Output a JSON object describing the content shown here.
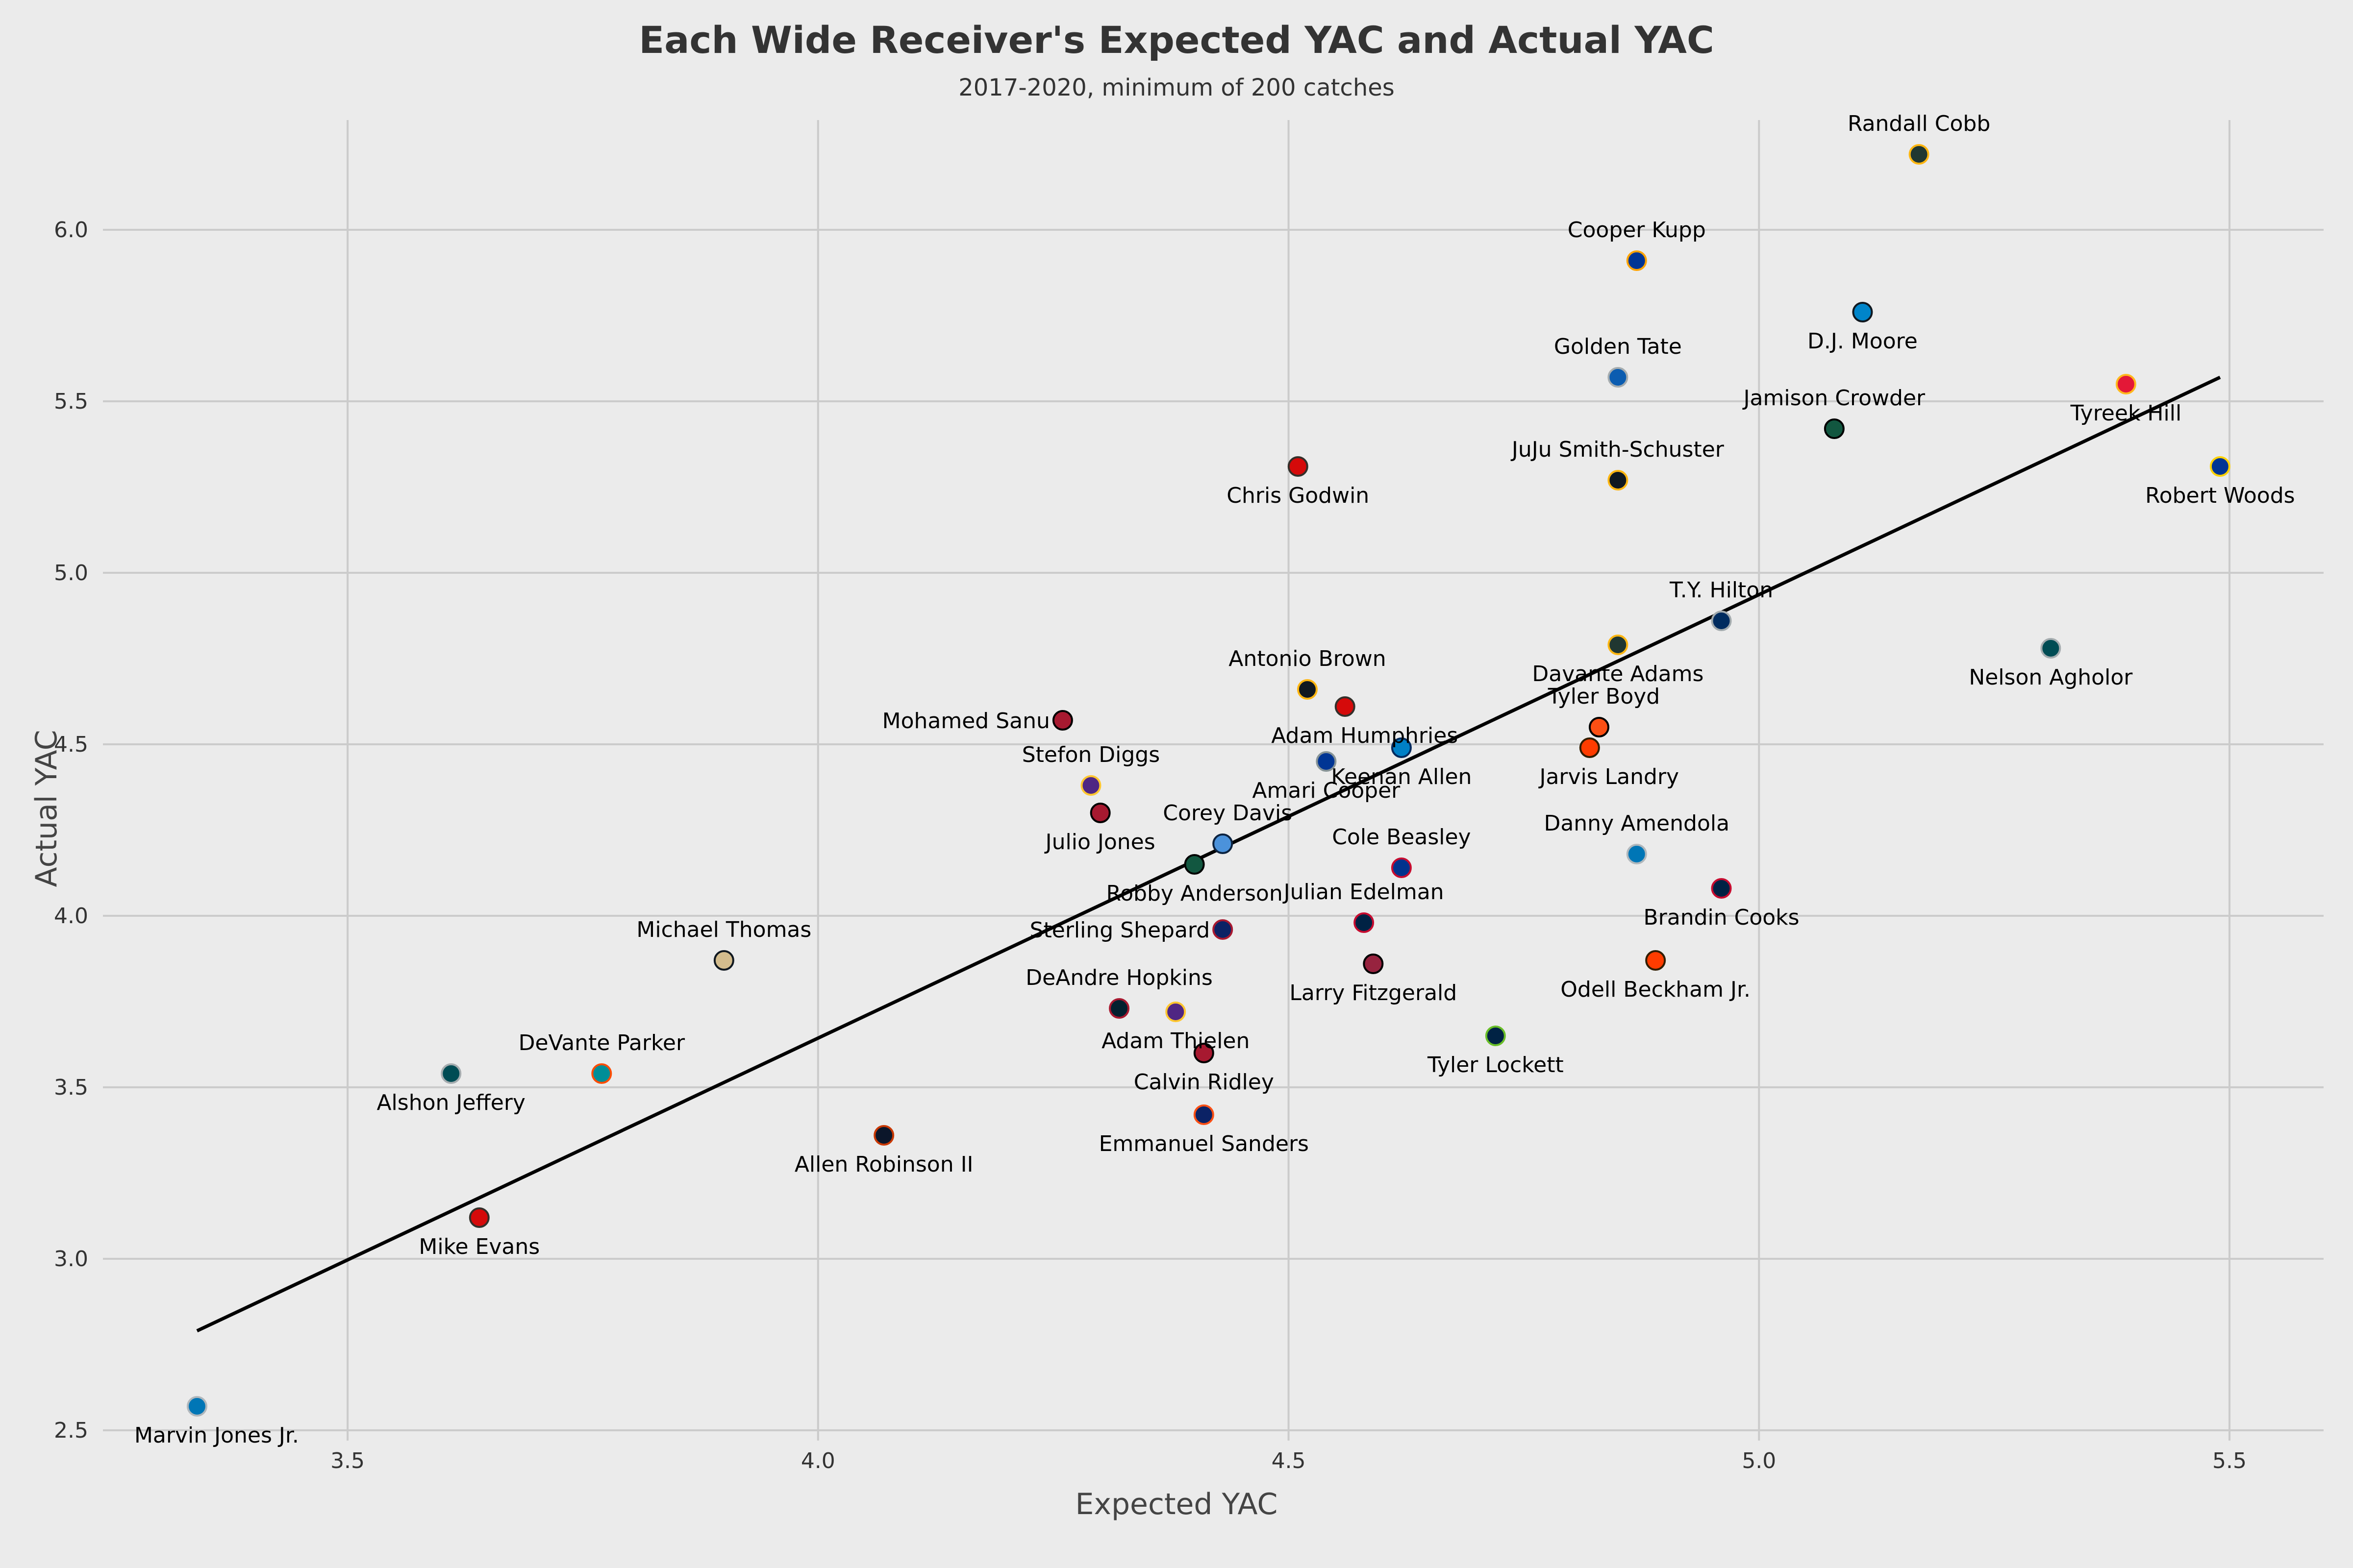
{
  "chart_data": {
    "type": "scatter",
    "title": "Each Wide Receiver's Expected YAC and Actual YAC",
    "subtitle": "2017-2020, minimum of 200 catches",
    "xlabel": "Expected YAC",
    "ylabel": "Actual YAC",
    "xlim": [
      3.24,
      5.6
    ],
    "ylim": [
      2.47,
      6.32
    ],
    "xticks": [
      "3.5",
      "4.0",
      "4.5",
      "5.0",
      "5.5"
    ],
    "yticks": [
      "2.5",
      "3.0",
      "3.5",
      "4.0",
      "4.5",
      "5.0",
      "5.5",
      "6.0"
    ],
    "grid": true,
    "trendline": {
      "x": [
        3.34,
        5.49
      ],
      "y": [
        2.79,
        5.57
      ]
    },
    "points": [
      {
        "name": "Randall Cobb",
        "x": 5.17,
        "y": 6.22,
        "color": "#203731",
        "edge": "#ffb612",
        "label_pos": "above"
      },
      {
        "name": "Cooper Kupp",
        "x": 4.87,
        "y": 5.91,
        "color": "#003594",
        "edge": "#ffa300",
        "label_pos": "above"
      },
      {
        "name": "D.J. Moore",
        "x": 5.11,
        "y": 5.76,
        "color": "#0085ca",
        "edge": "#101820",
        "label_pos": "below"
      },
      {
        "name": "Golden Tate",
        "x": 4.85,
        "y": 5.57,
        "color": "#0b5cb0",
        "edge": "#a5acaf",
        "label_pos": "above"
      },
      {
        "name": "Tyreek Hill",
        "x": 5.39,
        "y": 5.55,
        "color": "#e31837",
        "edge": "#ffb81c",
        "label_pos": "below"
      },
      {
        "name": "Jamison Crowder",
        "x": 5.08,
        "y": 5.42,
        "color": "#125740",
        "edge": "#000000",
        "label_pos": "above"
      },
      {
        "name": "Robert Woods",
        "x": 5.49,
        "y": 5.31,
        "color": "#003594",
        "edge": "#ffd100",
        "label_pos": "below"
      },
      {
        "name": "Chris Godwin",
        "x": 4.51,
        "y": 5.31,
        "color": "#d50a0a",
        "edge": "#34302b",
        "label_pos": "below"
      },
      {
        "name": "JuJu Smith-Schuster",
        "x": 4.85,
        "y": 5.27,
        "color": "#101820",
        "edge": "#ffb612",
        "label_pos": "above"
      },
      {
        "name": "T.Y. Hilton",
        "x": 4.96,
        "y": 4.86,
        "color": "#002c5f",
        "edge": "#a2aaad",
        "label_pos": "above"
      },
      {
        "name": "Davante Adams",
        "x": 4.85,
        "y": 4.79,
        "color": "#203731",
        "edge": "#ffb612",
        "label_pos": "below"
      },
      {
        "name": "Nelson Agholor",
        "x": 5.31,
        "y": 4.78,
        "color": "#004c54",
        "edge": "#a5acaf",
        "label_pos": "below"
      },
      {
        "name": "Antonio Brown",
        "x": 4.52,
        "y": 4.66,
        "color": "#101820",
        "edge": "#ffb612",
        "label_pos": "above"
      },
      {
        "name": "Mohamed Sanu",
        "x": 4.26,
        "y": 4.57,
        "color": "#a71930",
        "edge": "#000000",
        "label_pos": "left"
      },
      {
        "name": "Adam Humphries",
        "x": 4.56,
        "y": 4.61,
        "color": "#d50a0a",
        "edge": "#34302b",
        "label_pos": "below-right"
      },
      {
        "name": "Tyler Boyd",
        "x": 4.83,
        "y": 4.55,
        "color": "#fb4f14",
        "edge": "#000000",
        "label_pos": "above-right"
      },
      {
        "name": "Keenan Allen",
        "x": 4.62,
        "y": 4.49,
        "color": "#0080c6",
        "edge": "#002a5e",
        "label_pos": "below"
      },
      {
        "name": "Jarvis Landry",
        "x": 4.82,
        "y": 4.49,
        "color": "#ff3c00",
        "edge": "#311d00",
        "label_pos": "below-right"
      },
      {
        "name": "Amari Cooper",
        "x": 4.54,
        "y": 4.45,
        "color": "#003594",
        "edge": "#869397",
        "label_pos": "below"
      },
      {
        "name": "Stefon Diggs",
        "x": 4.29,
        "y": 4.38,
        "color": "#4f2683",
        "edge": "#ffc62f",
        "label_pos": "above"
      },
      {
        "name": "Julio Jones",
        "x": 4.3,
        "y": 4.3,
        "color": "#a71930",
        "edge": "#000000",
        "label_pos": "below"
      },
      {
        "name": "Corey Davis",
        "x": 4.43,
        "y": 4.21,
        "color": "#4b92db",
        "edge": "#0c2340",
        "label_pos": "above-right"
      },
      {
        "name": "Robby Anderson",
        "x": 4.4,
        "y": 4.15,
        "color": "#125740",
        "edge": "#000000",
        "label_pos": "below"
      },
      {
        "name": "Cole Beasley",
        "x": 4.62,
        "y": 4.14,
        "color": "#00338d",
        "edge": "#c60c30",
        "label_pos": "above"
      },
      {
        "name": "Danny Amendola",
        "x": 4.87,
        "y": 4.18,
        "color": "#0076b6",
        "edge": "#b0b7bc",
        "label_pos": "above"
      },
      {
        "name": "Brandin Cooks",
        "x": 4.96,
        "y": 4.08,
        "color": "#002244",
        "edge": "#c60c30",
        "label_pos": "below"
      },
      {
        "name": "Julian Edelman",
        "x": 4.58,
        "y": 3.98,
        "color": "#002244",
        "edge": "#c60c30",
        "label_pos": "above"
      },
      {
        "name": "Sterling Shepard",
        "x": 4.43,
        "y": 3.96,
        "color": "#0b2265",
        "edge": "#a71930",
        "label_pos": "left"
      },
      {
        "name": "Larry Fitzgerald",
        "x": 4.59,
        "y": 3.86,
        "color": "#97233f",
        "edge": "#000000",
        "label_pos": "below"
      },
      {
        "name": "Odell Beckham Jr.",
        "x": 4.89,
        "y": 3.87,
        "color": "#ff3c00",
        "edge": "#311d00",
        "label_pos": "below"
      },
      {
        "name": "Michael Thomas",
        "x": 3.9,
        "y": 3.87,
        "color": "#d3bc8d",
        "edge": "#101820",
        "label_pos": "above"
      },
      {
        "name": "DeAndre Hopkins",
        "x": 4.32,
        "y": 3.73,
        "color": "#03202f",
        "edge": "#a71930",
        "label_pos": "above"
      },
      {
        "name": "Adam Thielen",
        "x": 4.38,
        "y": 3.72,
        "color": "#4f2683",
        "edge": "#ffc62f",
        "label_pos": "below"
      },
      {
        "name": "Tyler Lockett",
        "x": 4.72,
        "y": 3.65,
        "color": "#002244",
        "edge": "#69be28",
        "label_pos": "below"
      },
      {
        "name": "Calvin Ridley",
        "x": 4.41,
        "y": 3.6,
        "color": "#a71930",
        "edge": "#000000",
        "label_pos": "below"
      },
      {
        "name": "Alshon Jeffery",
        "x": 3.61,
        "y": 3.54,
        "color": "#004c54",
        "edge": "#a5acaf",
        "label_pos": "below"
      },
      {
        "name": "DeVante Parker",
        "x": 3.77,
        "y": 3.54,
        "color": "#008e97",
        "edge": "#fc4c02",
        "label_pos": "above"
      },
      {
        "name": "Emmanuel Sanders",
        "x": 4.41,
        "y": 3.42,
        "color": "#0b2265",
        "edge": "#fb4f14",
        "label_pos": "below"
      },
      {
        "name": "Allen Robinson II",
        "x": 4.07,
        "y": 3.36,
        "color": "#0b162a",
        "edge": "#c83803",
        "label_pos": "below"
      },
      {
        "name": "Mike Evans",
        "x": 3.64,
        "y": 3.12,
        "color": "#d50a0a",
        "edge": "#34302b",
        "label_pos": "below"
      },
      {
        "name": "Marvin Jones Jr.",
        "x": 3.34,
        "y": 2.57,
        "color": "#0076b6",
        "edge": "#b0b7bc",
        "label_pos": "below-right"
      }
    ]
  }
}
